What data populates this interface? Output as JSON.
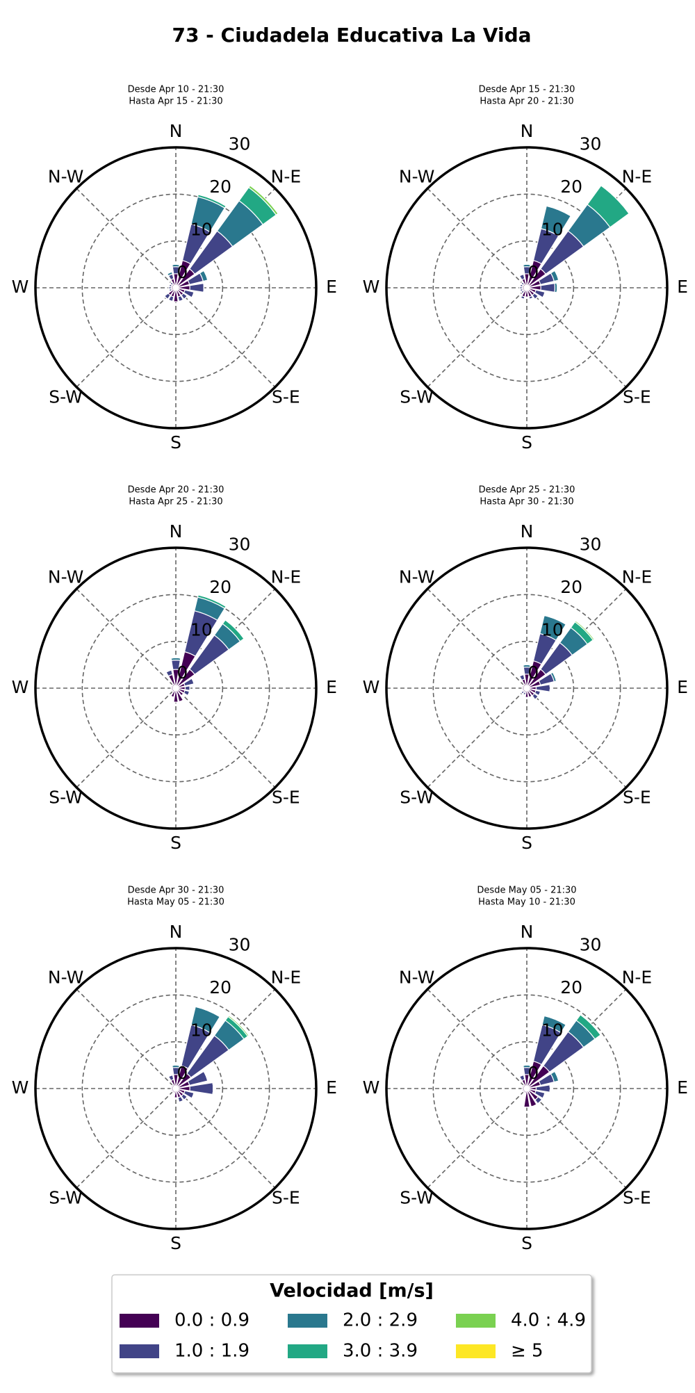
{
  "title": "73 - Ciudadela Educativa La Vida",
  "legend_title": "Velocidad [m/s]",
  "series": [
    {
      "name": "0.0 : 0.9",
      "color": "#440154"
    },
    {
      "name": "1.0 : 1.9",
      "color": "#414487"
    },
    {
      "name": "2.0 : 2.9",
      "color": "#2a788e"
    },
    {
      "name": "3.0 : 3.9",
      "color": "#22a884"
    },
    {
      "name": "4.0 : 4.9",
      "color": "#7ad151"
    },
    {
      "name": "≥  5",
      "color": "#fde725"
    }
  ],
  "chart_data": [
    {
      "type": "windrose",
      "subtitle": [
        "Desde Apr 10 - 21:30",
        "Hasta Apr 15 - 21:30"
      ],
      "categories": [
        "N",
        null,
        "N-E",
        null,
        "E",
        null,
        "S-E",
        null,
        "S",
        null,
        "S-W",
        null,
        "W",
        null,
        "N-W",
        null
      ],
      "ylim": [
        0,
        30
      ],
      "yticks": [
        0,
        10,
        20,
        30
      ],
      "values": [
        [
          3,
          6,
          5,
          3,
          3,
          2,
          2,
          2,
          3,
          2,
          2,
          1,
          1,
          1,
          1,
          2
        ],
        [
          1.5,
          8,
          10,
          3,
          3,
          2,
          1,
          1,
          0,
          1,
          1,
          0.5,
          0.5,
          0.5,
          0.5,
          1
        ],
        [
          0.5,
          6,
          8,
          1,
          0,
          0,
          0,
          0,
          0,
          0,
          0,
          0,
          0,
          0,
          0,
          0.5
        ],
        [
          0,
          0.5,
          3.5,
          0,
          0,
          0,
          0,
          0,
          0,
          0,
          0,
          0,
          0,
          0,
          0,
          0
        ],
        [
          0,
          0,
          0.5,
          0,
          0,
          0,
          0,
          0,
          0,
          0,
          0,
          0,
          0,
          0,
          0,
          0
        ],
        [
          0,
          0,
          0,
          0,
          0,
          0,
          0,
          0,
          0,
          0,
          0,
          0,
          0,
          0,
          0,
          0
        ]
      ]
    },
    {
      "type": "windrose",
      "subtitle": [
        "Desde Apr 15 - 21:30",
        "Hasta Apr 20 - 21:30"
      ],
      "categories": [
        "N",
        null,
        "N-E",
        null,
        "E",
        null,
        "S-E",
        null,
        "S",
        null,
        "S-W",
        null,
        "W",
        null,
        "N-W",
        null
      ],
      "ylim": [
        0,
        30
      ],
      "yticks": [
        0,
        10,
        20,
        30
      ],
      "values": [
        [
          3,
          6,
          5,
          3,
          3,
          2,
          2,
          2,
          2,
          2,
          1,
          1,
          1,
          1,
          1,
          2
        ],
        [
          1.5,
          7,
          10,
          3,
          3,
          2,
          1,
          0.5,
          0,
          0.5,
          0.5,
          0.5,
          0.5,
          0.5,
          0.5,
          1
        ],
        [
          0.5,
          5,
          7,
          1,
          0.5,
          0,
          0,
          0,
          0,
          0,
          0,
          0,
          0,
          0,
          0,
          0
        ],
        [
          0,
          0,
          5,
          0,
          0,
          0,
          0,
          0,
          0,
          0,
          0,
          0,
          0,
          0,
          0,
          0
        ],
        [
          0,
          0,
          0,
          0,
          0,
          0,
          0,
          0,
          0,
          0,
          0,
          0,
          0,
          0,
          0,
          0
        ],
        [
          0,
          0,
          0,
          0,
          0,
          0,
          0,
          0,
          0,
          0,
          0,
          0,
          0,
          0,
          0,
          0
        ]
      ]
    },
    {
      "type": "windrose",
      "subtitle": [
        "Desde Apr 20 - 21:30",
        "Hasta Apr 25 - 21:30"
      ],
      "categories": [
        "N",
        null,
        "N-E",
        null,
        "E",
        null,
        "S-E",
        null,
        "S",
        null,
        "S-W",
        null,
        "W",
        null,
        "N-W",
        null
      ],
      "ylim": [
        0,
        30
      ],
      "yticks": [
        0,
        10,
        20,
        30
      ],
      "values": [
        [
          4,
          8,
          5,
          2,
          2,
          2,
          2,
          3,
          3,
          2,
          1,
          1,
          1,
          1,
          1,
          3
        ],
        [
          2,
          9,
          9,
          2,
          1,
          1,
          0,
          0,
          0,
          0,
          0,
          0,
          0,
          0,
          0,
          1
        ],
        [
          0.5,
          3,
          3,
          0,
          0,
          0,
          0,
          0,
          0,
          0,
          0,
          0,
          0,
          0,
          0,
          0
        ],
        [
          0,
          0.5,
          1,
          0,
          0,
          0,
          0,
          0,
          0,
          0,
          0,
          0,
          0,
          0,
          0,
          0
        ],
        [
          0,
          0,
          0,
          0,
          0,
          0,
          0,
          0,
          0,
          0,
          0,
          0,
          0,
          0,
          0,
          0
        ],
        [
          0,
          0,
          0,
          0,
          0,
          0,
          0,
          0,
          0,
          0,
          0,
          0,
          0,
          0,
          0,
          0
        ]
      ]
    },
    {
      "type": "windrose",
      "subtitle": [
        "Desde Apr 25 - 21:30",
        "Hasta Apr 30 - 21:30"
      ],
      "categories": [
        "N",
        null,
        "N-E",
        null,
        "E",
        null,
        "S-E",
        null,
        "S",
        null,
        "S-W",
        null,
        "W",
        null,
        "N-W",
        null
      ],
      "ylim": [
        0,
        30
      ],
      "yticks": [
        0,
        10,
        20,
        30
      ],
      "values": [
        [
          3,
          6,
          5,
          3,
          2,
          2,
          2,
          2,
          2,
          1,
          1,
          1,
          1,
          1,
          1,
          2
        ],
        [
          1.5,
          6,
          7,
          3,
          3,
          1,
          1,
          0,
          0,
          0.5,
          0.5,
          0,
          0,
          0,
          0,
          1
        ],
        [
          0.5,
          4,
          4,
          0.5,
          0,
          0,
          0,
          0,
          0,
          0,
          0,
          0,
          0,
          0,
          0,
          0
        ],
        [
          0,
          0,
          1.5,
          0,
          0,
          0,
          0,
          0,
          0,
          0,
          0,
          0,
          0,
          0,
          0,
          0
        ],
        [
          0,
          0,
          0.3,
          0,
          0,
          0,
          0,
          0,
          0,
          0,
          0,
          0,
          0,
          0,
          0,
          0
        ],
        [
          0,
          0,
          0,
          0,
          0,
          0,
          0,
          0,
          0,
          0,
          0,
          0,
          0,
          0,
          0,
          0
        ]
      ]
    },
    {
      "type": "windrose",
      "subtitle": [
        "Desde Apr 30 - 21:30",
        "Hasta May 05 - 21:30"
      ],
      "categories": [
        "N",
        null,
        "N-E",
        null,
        "E",
        null,
        "S-E",
        null,
        "S",
        null,
        "S-W",
        null,
        "W",
        null,
        "N-W",
        null
      ],
      "ylim": [
        0,
        30
      ],
      "yticks": [
        0,
        10,
        20,
        30
      ],
      "values": [
        [
          3,
          5,
          4,
          3,
          3,
          2,
          2,
          2,
          2,
          1,
          1,
          1,
          1,
          1,
          1,
          2
        ],
        [
          1.5,
          9,
          10,
          4,
          5,
          2,
          1,
          1,
          0,
          0,
          0,
          0,
          0,
          0,
          0,
          1
        ],
        [
          0.5,
          4,
          4,
          0,
          0,
          0,
          0,
          0,
          0,
          0,
          0,
          0,
          0,
          0,
          0,
          0
        ],
        [
          0,
          0,
          1,
          0,
          0,
          0,
          0,
          0,
          0,
          0,
          0,
          0,
          0,
          0,
          0,
          0
        ],
        [
          0,
          0,
          0.3,
          0,
          0,
          0,
          0,
          0,
          0,
          0,
          0,
          0,
          0,
          0,
          0,
          0
        ],
        [
          0,
          0,
          0,
          0,
          0,
          0,
          0,
          0,
          0,
          0,
          0,
          0,
          0,
          0,
          0,
          0
        ]
      ]
    },
    {
      "type": "windrose",
      "subtitle": [
        "Desde May 05 - 21:30",
        "Hasta May 10 - 21:30"
      ],
      "categories": [
        "N",
        null,
        "N-E",
        null,
        "E",
        null,
        "S-E",
        null,
        "S",
        null,
        "S-W",
        null,
        "W",
        null,
        "N-W",
        null
      ],
      "ylim": [
        0,
        30
      ],
      "yticks": [
        0,
        10,
        20,
        30
      ],
      "values": [
        [
          3,
          6,
          6,
          3,
          2,
          2,
          3,
          4,
          4,
          1,
          1,
          1,
          1,
          1,
          1,
          2
        ],
        [
          1.5,
          8,
          9,
          3,
          3,
          2,
          1,
          0,
          0,
          0,
          0,
          0,
          0,
          0,
          0,
          1
        ],
        [
          0.5,
          2,
          3,
          1,
          0,
          0,
          0,
          0,
          0,
          0,
          0,
          0,
          0,
          0,
          0,
          0
        ],
        [
          0,
          0,
          1.5,
          0,
          0,
          0,
          0,
          0,
          0,
          0,
          0,
          0,
          0,
          0,
          0,
          0
        ],
        [
          0,
          0,
          0,
          0,
          0,
          0,
          0,
          0,
          0,
          0,
          0,
          0,
          0,
          0,
          0,
          0
        ],
        [
          0,
          0,
          0,
          0,
          0,
          0,
          0,
          0,
          0,
          0,
          0,
          0,
          0,
          0,
          0,
          0
        ]
      ]
    }
  ]
}
